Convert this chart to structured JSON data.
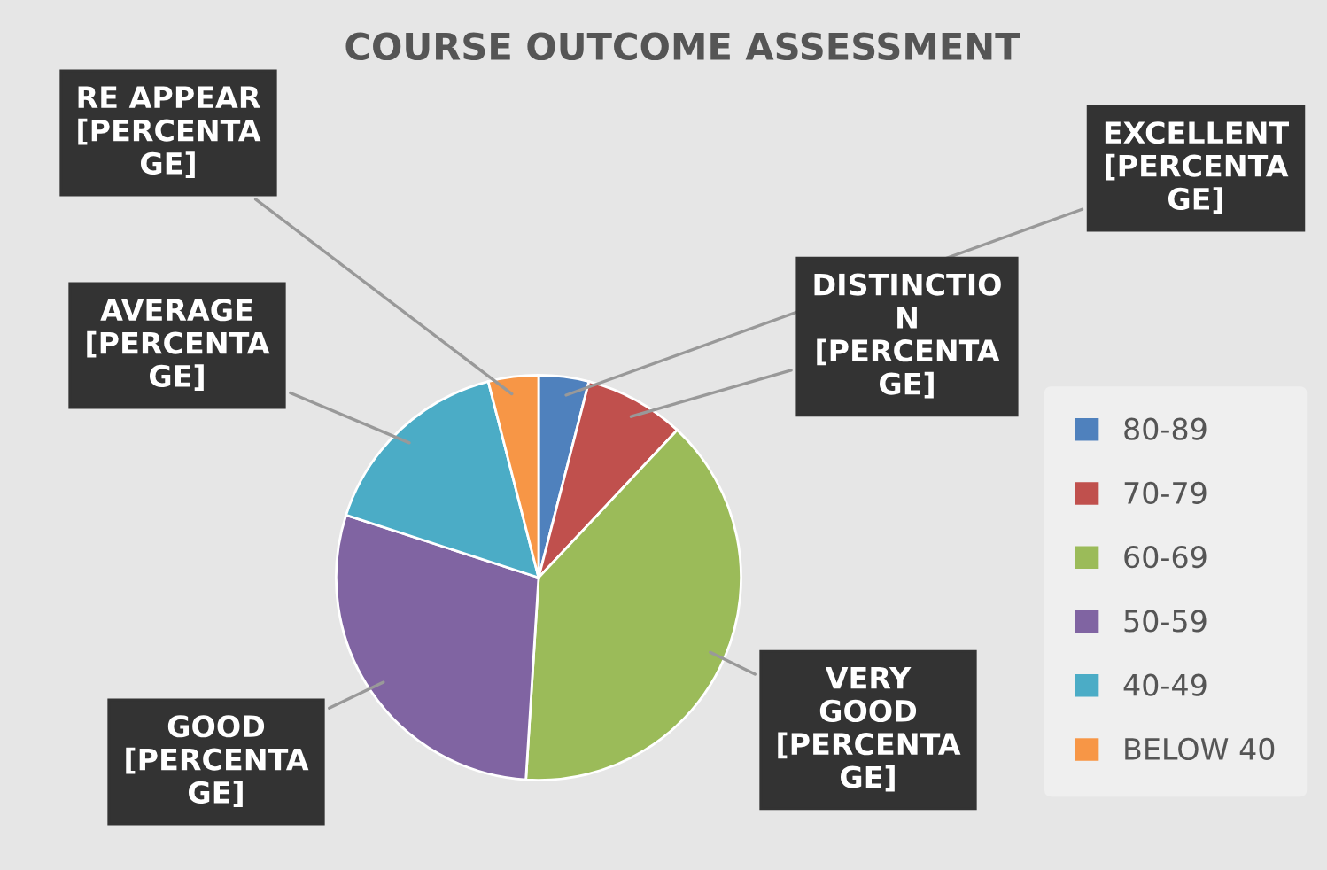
{
  "chart_data": {
    "type": "pie",
    "title": "COURSE OUTCOME ASSESSMENT",
    "categories": [
      "80-89",
      "70-79",
      "60-69",
      "50-59",
      "40-49",
      "BELOW 40"
    ],
    "values": [
      4,
      8,
      39,
      29,
      16,
      4
    ],
    "colors": [
      "#4f81bd",
      "#c0504d",
      "#9bbb59",
      "#8064a2",
      "#4bacc6",
      "#f79646"
    ],
    "annotations": [
      "EXCELLENT\n[PERCENTA\nGE]",
      "DISTINCTIO\nN\n[PERCENTA\nGE]",
      "VERY\nGOOD\n[PERCENTA\nGE]",
      "GOOD\n[PERCENTA\nGE]",
      "AVERAGE\n[PERCENTA\nGE]",
      "RE APPEAR\n[PERCENTA\nGE]"
    ],
    "legend": "right"
  }
}
